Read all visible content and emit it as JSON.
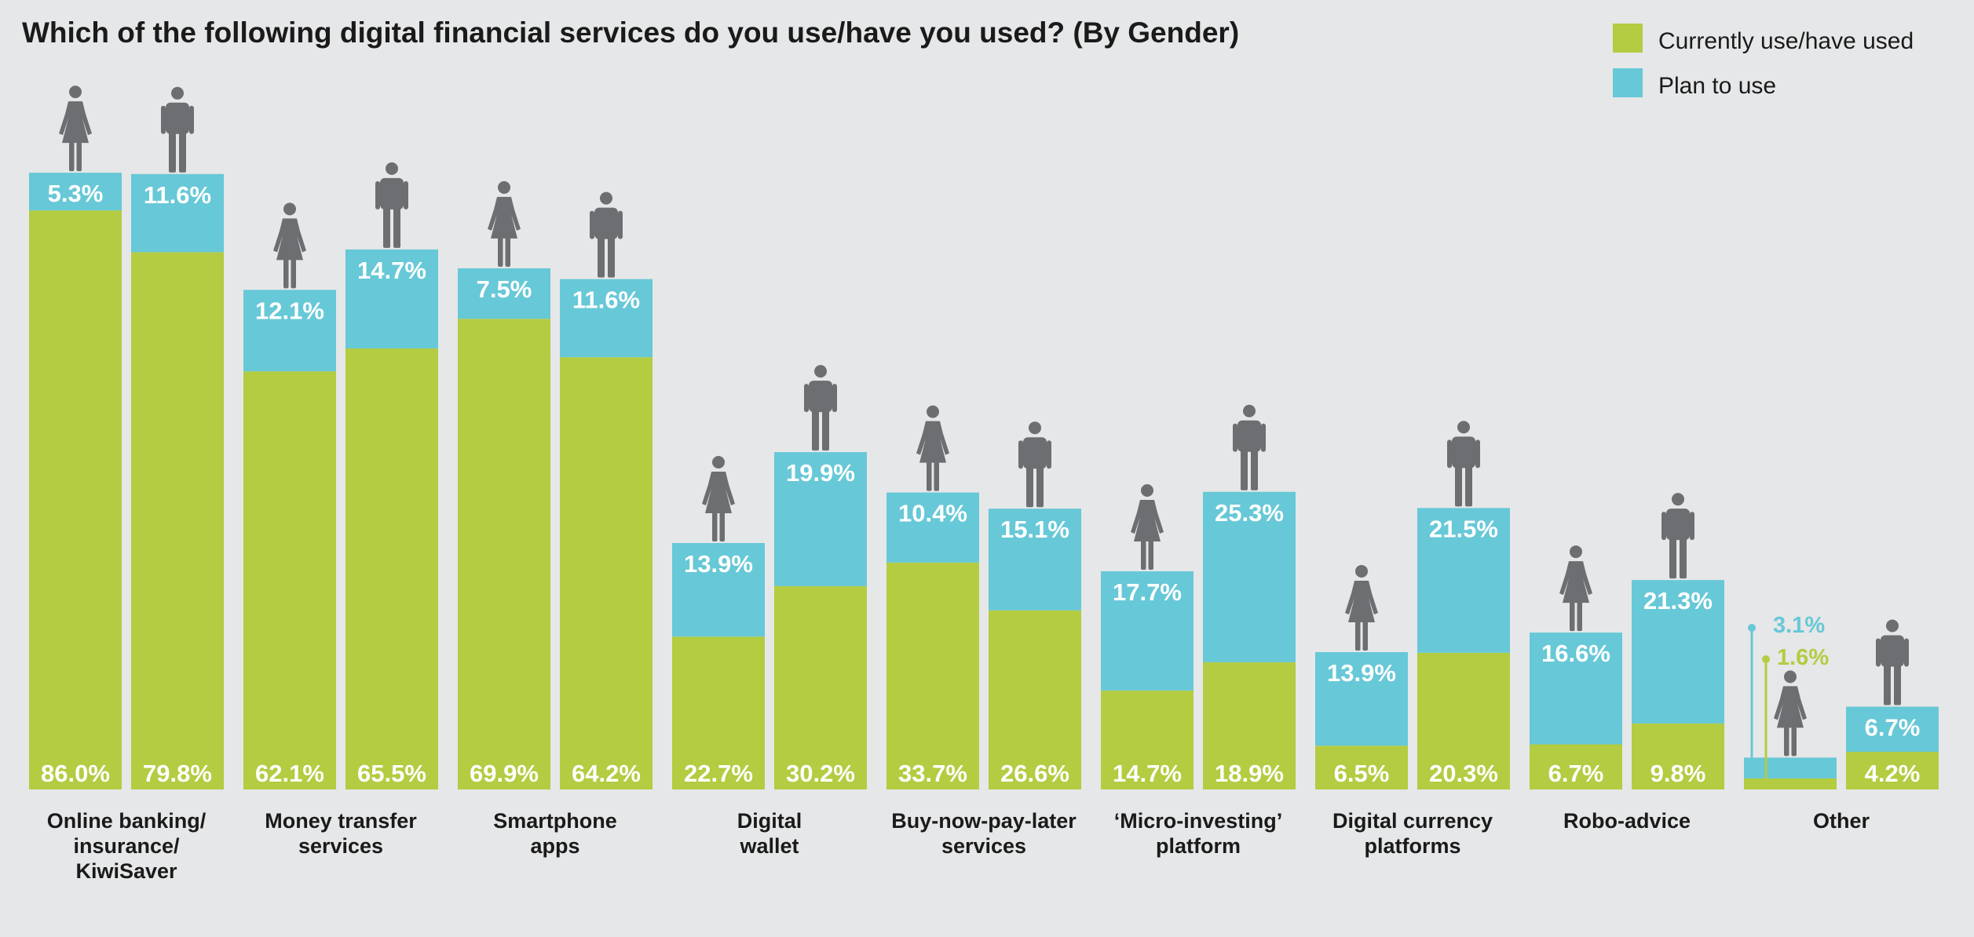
{
  "chart_data": {
    "type": "bar",
    "stacked": true,
    "title": "Which of the following digital financial services do you use/have you used? (By Gender)",
    "legend": {
      "placement": "top-right",
      "items": [
        {
          "label": "Currently use/have used",
          "color": "#b3cc41"
        },
        {
          "label": "Plan to use",
          "color": "#67c8d7"
        }
      ]
    },
    "groups": [
      "female",
      "male"
    ],
    "categories": [
      [
        "Online banking/",
        "insurance/",
        "KiwiSaver"
      ],
      [
        "Money transfer",
        "services"
      ],
      [
        "Smartphone",
        "apps"
      ],
      [
        "Digital",
        "wallet"
      ],
      [
        "Buy-now-pay-later",
        "services"
      ],
      [
        "‘Micro-investing’",
        "platform"
      ],
      [
        "Digital currency",
        "platforms"
      ],
      [
        "Robo-advice"
      ],
      [
        "Other"
      ]
    ],
    "series": [
      {
        "name": "Currently use/have used",
        "color": "#b3cc41",
        "female": [
          86.0,
          62.1,
          69.9,
          22.7,
          33.7,
          14.7,
          6.5,
          6.7,
          1.6
        ],
        "male": [
          79.8,
          65.5,
          64.2,
          30.2,
          26.6,
          18.9,
          20.3,
          9.8,
          4.2
        ],
        "female_labels": [
          "86.0%",
          "62.1%",
          "69.9%",
          "22.7%",
          "33.7%",
          "14.7%",
          "6.5%",
          "6.7%",
          "1.6%"
        ],
        "male_labels": [
          "79.8%",
          "65.5%",
          "64.2%",
          "30.2%",
          "26.6%",
          "18.9%",
          "20.3%",
          "9.8%",
          "4.2%"
        ]
      },
      {
        "name": "Plan to use",
        "color": "#67c8d7",
        "female": [
          5.3,
          12.1,
          7.5,
          13.9,
          10.4,
          17.7,
          13.9,
          16.6,
          3.1
        ],
        "male": [
          11.6,
          14.7,
          11.6,
          19.9,
          15.1,
          25.3,
          21.5,
          21.3,
          6.7
        ],
        "female_labels": [
          "5.3%",
          "12.1%",
          "7.5%",
          "13.9%",
          "10.4%",
          "17.7%",
          "13.9%",
          "16.6%",
          "3.1%"
        ],
        "male_labels": [
          "11.6%",
          "14.7%",
          "11.6%",
          "19.9%",
          "15.1%",
          "25.3%",
          "21.5%",
          "21.3%",
          "6.7%"
        ]
      }
    ],
    "ylim": [
      0,
      100
    ],
    "grid": false,
    "icon_color": "#6d6e71",
    "icons": {
      "female": "female-person-icon",
      "male": "male-person-icon"
    }
  }
}
